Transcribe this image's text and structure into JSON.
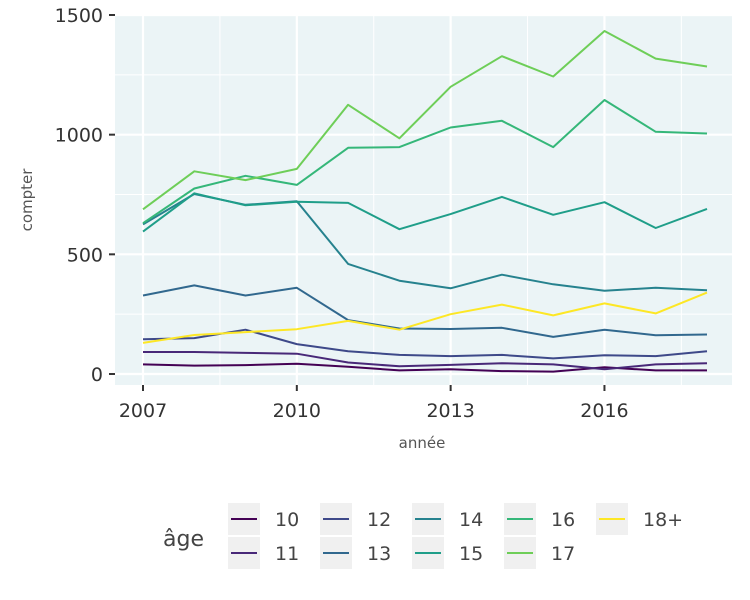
{
  "chart_data": {
    "type": "line",
    "xlabel": "année",
    "ylabel": "compter",
    "xlim": [
      2007,
      2018
    ],
    "ylim": [
      0,
      1500
    ],
    "x": [
      2007,
      2008,
      2009,
      2010,
      2011,
      2012,
      2013,
      2014,
      2015,
      2016,
      2017,
      2018
    ],
    "x_ticks": [
      2007,
      2010,
      2013,
      2016
    ],
    "x_tick_labels": [
      "2007",
      "2010",
      "2013",
      "2016"
    ],
    "y_ticks": [
      0,
      500,
      1000,
      1500
    ],
    "y_tick_labels": [
      "0",
      "500",
      "1000",
      "1500"
    ],
    "grid": true,
    "legend": {
      "title": "âge",
      "position": "bottom"
    },
    "series": [
      {
        "name": "10",
        "color": "#440154",
        "values": [
          40,
          35,
          37,
          43,
          30,
          15,
          20,
          12,
          10,
          28,
          15,
          15
        ]
      },
      {
        "name": "11",
        "color": "#482878",
        "values": [
          92,
          92,
          88,
          85,
          48,
          32,
          38,
          45,
          40,
          20,
          40,
          45
        ]
      },
      {
        "name": "12",
        "color": "#3e4989",
        "values": [
          145,
          150,
          185,
          125,
          95,
          80,
          75,
          80,
          65,
          78,
          75,
          95
        ]
      },
      {
        "name": "13",
        "color": "#31688e",
        "values": [
          328,
          370,
          328,
          360,
          225,
          190,
          188,
          193,
          155,
          185,
          162,
          165
        ]
      },
      {
        "name": "14",
        "color": "#26828e",
        "values": [
          625,
          752,
          707,
          722,
          460,
          390,
          358,
          415,
          375,
          348,
          360,
          350
        ]
      },
      {
        "name": "15",
        "color": "#1f9e89",
        "values": [
          595,
          755,
          705,
          720,
          715,
          605,
          668,
          740,
          665,
          718,
          610,
          690
        ]
      },
      {
        "name": "16",
        "color": "#35b779",
        "values": [
          630,
          775,
          828,
          790,
          945,
          948,
          1030,
          1058,
          948,
          1145,
          1012,
          1005
        ]
      },
      {
        "name": "17",
        "color": "#6ece58",
        "values": [
          688,
          847,
          810,
          857,
          1125,
          985,
          1200,
          1328,
          1243,
          1433,
          1318,
          1285
        ]
      },
      {
        "name": "18+",
        "color": "#fde725",
        "values": [
          130,
          163,
          175,
          187,
          222,
          185,
          250,
          290,
          245,
          295,
          253,
          340
        ]
      }
    ]
  },
  "colors": {
    "panel_background": "#ebf4f6",
    "grid": "#ffffff",
    "legend_key_background": "#f0f0f0"
  }
}
